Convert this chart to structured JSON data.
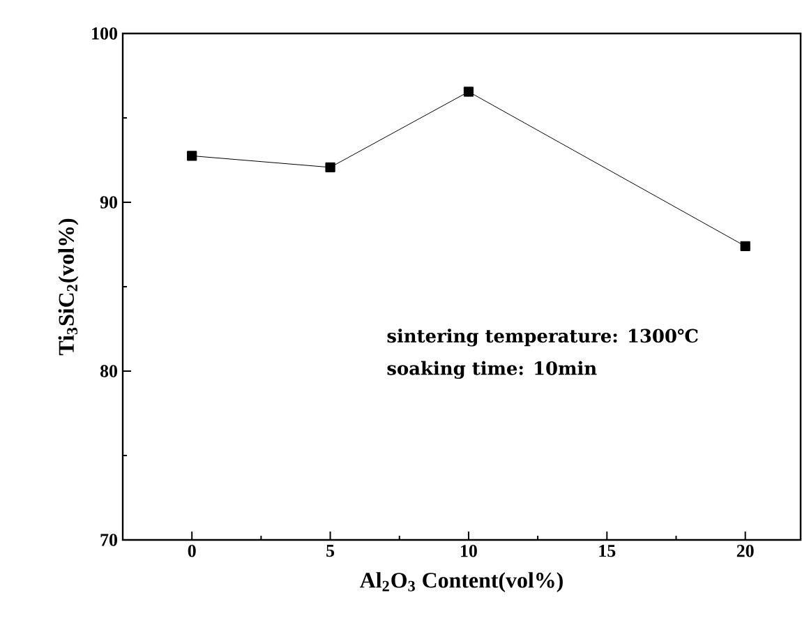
{
  "chart_data": {
    "type": "line",
    "xlabel": "Al$_{2}$O$_{3}$ Content(vol%)",
    "ylabel": "Ti$_{3}$SiC$_{2}$(vol%)",
    "x": [
      0,
      5,
      10,
      20
    ],
    "values": [
      92.75,
      92.07,
      96.55,
      87.4
    ],
    "color": "#000000",
    "marker": "square",
    "line_style": "solid",
    "xlim": [
      -2.5,
      22
    ],
    "ylim": [
      70,
      100
    ],
    "xticks": [
      0,
      5,
      10,
      15,
      20
    ],
    "yticks": [
      70,
      80,
      90,
      100
    ],
    "annotations": [
      "sintering temperature: 1300℃",
      "soaking time: 10min"
    ]
  }
}
